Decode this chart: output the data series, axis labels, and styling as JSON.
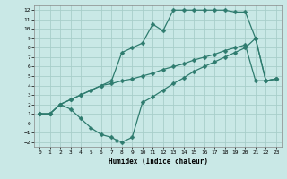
{
  "title": "",
  "xlabel": "Humidex (Indice chaleur)",
  "bg_color": "#c9e8e6",
  "grid_color": "#a8ceca",
  "line_color": "#2e7b6e",
  "xlim": [
    -0.5,
    23.5
  ],
  "ylim": [
    -2.5,
    12.5
  ],
  "xticks": [
    0,
    1,
    2,
    3,
    4,
    5,
    6,
    7,
    8,
    9,
    10,
    11,
    12,
    13,
    14,
    15,
    16,
    17,
    18,
    19,
    20,
    21,
    22,
    23
  ],
  "yticks": [
    -2,
    -1,
    0,
    1,
    2,
    3,
    4,
    5,
    6,
    7,
    8,
    9,
    10,
    11,
    12
  ],
  "line1_x": [
    0,
    1,
    2,
    3,
    4,
    5,
    6,
    7,
    7.5,
    8,
    9,
    10,
    11,
    12,
    13,
    14,
    15,
    16,
    17,
    18,
    19,
    20,
    21,
    22,
    23
  ],
  "line1_y": [
    1,
    1,
    2,
    1.5,
    0.5,
    -0.5,
    -1.2,
    -1.5,
    -1.8,
    -2,
    -1.5,
    2.2,
    2.8,
    3.5,
    4.2,
    4.8,
    5.5,
    6,
    6.5,
    7,
    7.5,
    8,
    9,
    4.5,
    4.7
  ],
  "line2_x": [
    0,
    1,
    2,
    3,
    4,
    5,
    6,
    7,
    8,
    9,
    10,
    11,
    12,
    13,
    14,
    15,
    16,
    17,
    18,
    19,
    20,
    21,
    22,
    23
  ],
  "line2_y": [
    1,
    1,
    2,
    2.5,
    3,
    3.5,
    4,
    4.2,
    4.5,
    4.7,
    5,
    5.3,
    5.7,
    6,
    6.3,
    6.7,
    7,
    7.3,
    7.7,
    8,
    8.3,
    4.5,
    4.5,
    4.7
  ],
  "line3_x": [
    0,
    1,
    2,
    3,
    4,
    5,
    6,
    7,
    8,
    9,
    10,
    11,
    12,
    13,
    14,
    15,
    16,
    17,
    18,
    19,
    20,
    21,
    22,
    23
  ],
  "line3_y": [
    1,
    1,
    2,
    2.5,
    3,
    3.5,
    4,
    4.5,
    7.5,
    8,
    8.5,
    10.5,
    9.8,
    12,
    12,
    12,
    12,
    12,
    12,
    11.8,
    11.8,
    9,
    4.5,
    4.7
  ]
}
